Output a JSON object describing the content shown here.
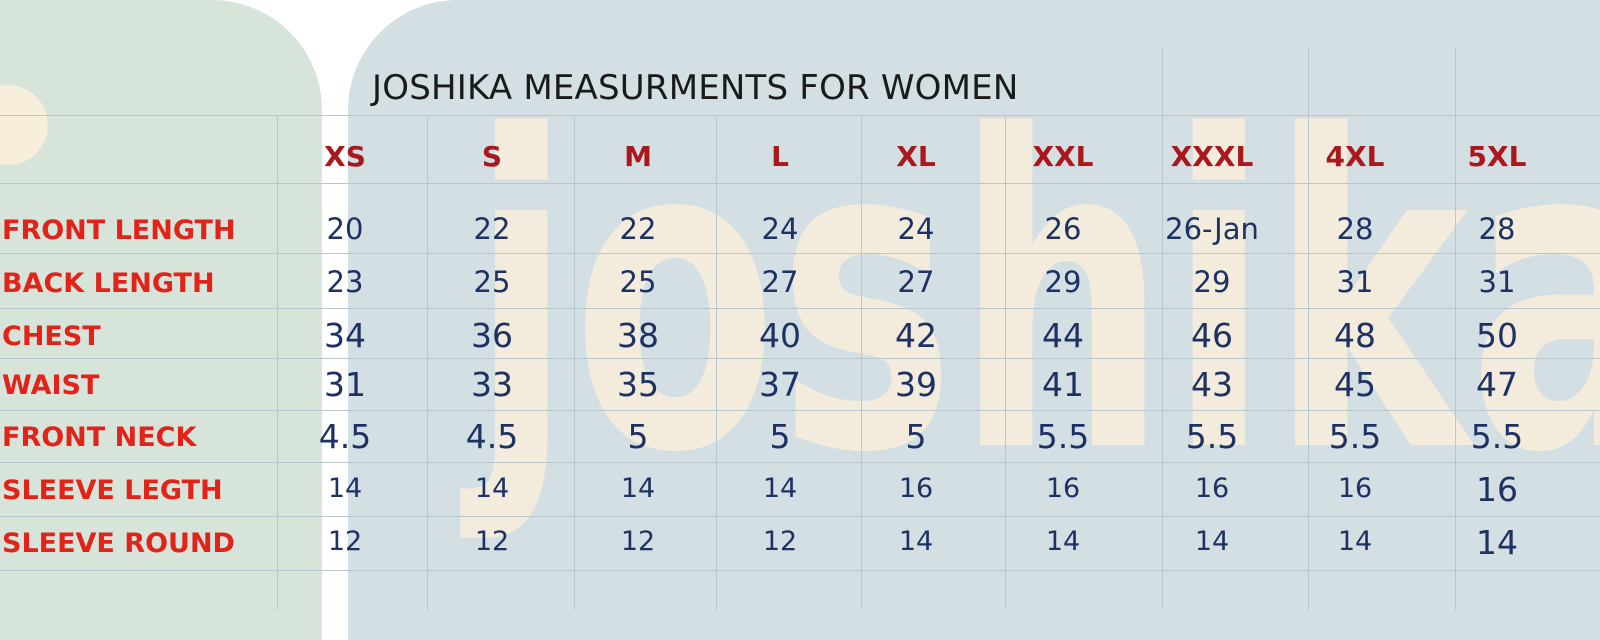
{
  "title": "JOSHIKA MEASURMENTS FOR WOMEN",
  "watermark_text": "joshika",
  "colors": {
    "header": "#a8181c",
    "label": "#e2231a",
    "value": "#1d3263",
    "watermark": "#fdf0dc"
  },
  "sizes": [
    "XS",
    "S",
    "M",
    "L",
    "XL",
    "XXL",
    "XXXL",
    "4XL",
    "5XL"
  ],
  "rows": [
    {
      "label": "FRONT LENGTH",
      "values": [
        "20",
        "22",
        "22",
        "24",
        "24",
        "26",
        "26-Jan",
        "28",
        "28"
      ]
    },
    {
      "label": "BACK LENGTH",
      "values": [
        "23",
        "25",
        "25",
        "27",
        "27",
        "29",
        "29",
        "31",
        "31"
      ]
    },
    {
      "label": "CHEST",
      "values": [
        "34",
        "36",
        "38",
        "40",
        "42",
        "44",
        "46",
        "48",
        "50"
      ]
    },
    {
      "label": "WAIST",
      "values": [
        "31",
        "33",
        "35",
        "37",
        "39",
        "41",
        "43",
        "45",
        "47"
      ]
    },
    {
      "label": "FRONT NECK",
      "values": [
        "4.5",
        "4.5",
        "5",
        "5",
        "5",
        "5.5",
        "5.5",
        "5.5",
        "5.5"
      ]
    },
    {
      "label": "SLEEVE LEGTH",
      "values": [
        "14",
        "14",
        "14",
        "14",
        "16",
        "16",
        "16",
        "16",
        "16"
      ]
    },
    {
      "label": "SLEEVE ROUND",
      "values": [
        "12",
        "12",
        "12",
        "12",
        "14",
        "14",
        "14",
        "14",
        "14"
      ]
    }
  ]
}
